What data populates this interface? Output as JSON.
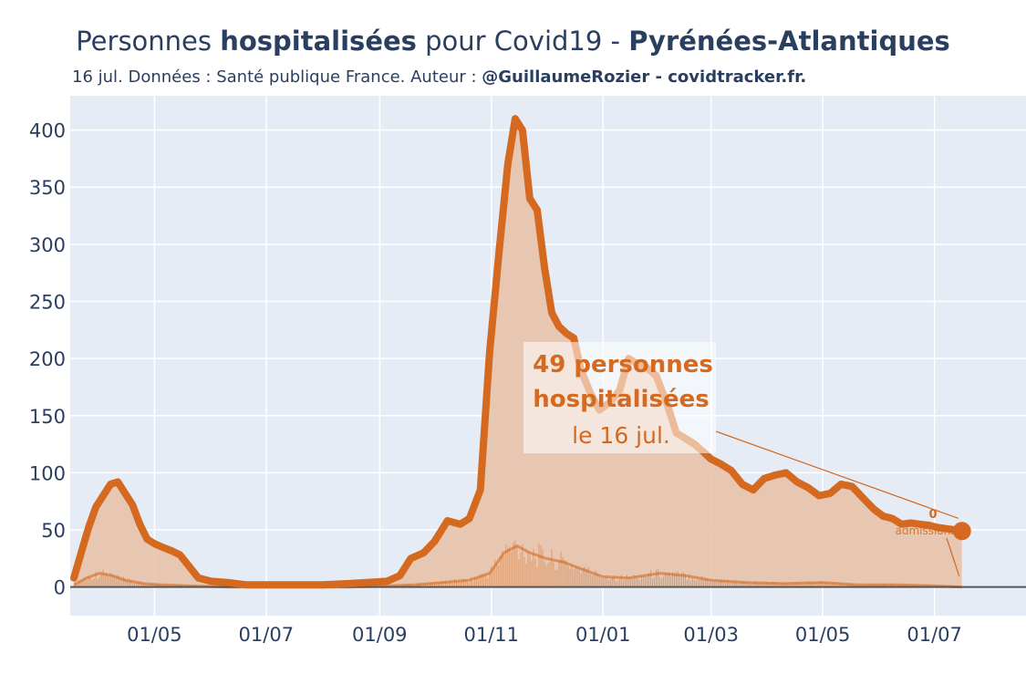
{
  "header": {
    "title_pre": "Personnes ",
    "title_bold": "hospitalisées",
    "title_mid": " pour Covid19 - ",
    "title_region": "Pyrénées-Atlantiques",
    "subtitle_pre": "16 jul. Données : Santé publique France. Auteur : ",
    "subtitle_bold": "@GuillaumeRozier - covidtracker.fr."
  },
  "annotation": {
    "line1": "49 personnes",
    "line2": "hospitalisées",
    "line3": "le 16 jul.",
    "admissions_value": "0",
    "admissions_label": "admissions"
  },
  "colors": {
    "hosp_line": "#d4691f",
    "hosp_fill": "#e7c3ab",
    "plot_bg": "#e5ecf6",
    "grid": "#ffffff",
    "text": "#2a3f5f"
  },
  "chart_data": {
    "type": "line",
    "ylim": [
      -25,
      430
    ],
    "yticks": [
      0,
      50,
      100,
      150,
      200,
      250,
      300,
      350,
      400
    ],
    "xticks": [
      "01/05",
      "01/07",
      "01/09",
      "01/11",
      "01/01",
      "01/03",
      "01/05",
      "01/07"
    ],
    "series": [
      {
        "name": "hospitalisations",
        "x": [
          "2020-03-18",
          "2020-03-22",
          "2020-03-26",
          "2020-03-30",
          "2020-04-03",
          "2020-04-07",
          "2020-04-11",
          "2020-04-15",
          "2020-04-19",
          "2020-04-23",
          "2020-04-27",
          "2020-05-01",
          "2020-05-05",
          "2020-05-10",
          "2020-05-15",
          "2020-05-20",
          "2020-05-25",
          "2020-06-01",
          "2020-06-10",
          "2020-06-20",
          "2020-07-01",
          "2020-07-15",
          "2020-08-01",
          "2020-08-15",
          "2020-08-25",
          "2020-09-05",
          "2020-09-12",
          "2020-09-18",
          "2020-09-25",
          "2020-10-01",
          "2020-10-08",
          "2020-10-15",
          "2020-10-20",
          "2020-10-26",
          "2020-10-31",
          "2020-11-05",
          "2020-11-10",
          "2020-11-14",
          "2020-11-18",
          "2020-11-22",
          "2020-11-26",
          "2020-11-30",
          "2020-12-04",
          "2020-12-08",
          "2020-12-12",
          "2020-12-16",
          "2020-12-20",
          "2020-12-25",
          "2020-12-30",
          "2021-01-05",
          "2021-01-10",
          "2021-01-15",
          "2021-01-20",
          "2021-01-25",
          "2021-01-30",
          "2021-02-05",
          "2021-02-10",
          "2021-02-15",
          "2021-02-20",
          "2021-02-25",
          "2021-03-01",
          "2021-03-06",
          "2021-03-12",
          "2021-03-18",
          "2021-03-24",
          "2021-03-30",
          "2021-04-05",
          "2021-04-11",
          "2021-04-17",
          "2021-04-23",
          "2021-04-29",
          "2021-05-05",
          "2021-05-11",
          "2021-05-17",
          "2021-05-23",
          "2021-05-29",
          "2021-06-03",
          "2021-06-08",
          "2021-06-13",
          "2021-06-18",
          "2021-06-23",
          "2021-06-28",
          "2021-07-03",
          "2021-07-08",
          "2021-07-12",
          "2021-07-16"
        ],
        "values": [
          8,
          30,
          52,
          70,
          80,
          90,
          92,
          82,
          72,
          55,
          42,
          38,
          35,
          32,
          28,
          18,
          8,
          5,
          4,
          2,
          2,
          2,
          2,
          3,
          4,
          5,
          10,
          25,
          30,
          40,
          58,
          55,
          60,
          85,
          205,
          290,
          370,
          410,
          400,
          340,
          330,
          280,
          240,
          228,
          222,
          218,
          190,
          170,
          155,
          162,
          172,
          200,
          195,
          192,
          185,
          160,
          135,
          130,
          125,
          118,
          112,
          108,
          102,
          90,
          85,
          95,
          98,
          100,
          92,
          87,
          80,
          82,
          90,
          88,
          78,
          68,
          62,
          60,
          55,
          56,
          55,
          54,
          52,
          51,
          50,
          49
        ]
      },
      {
        "name": "admissions",
        "x": [
          "2020-03-18",
          "2020-03-25",
          "2020-04-01",
          "2020-04-08",
          "2020-04-15",
          "2020-04-25",
          "2020-05-05",
          "2020-05-20",
          "2020-06-10",
          "2020-07-15",
          "2020-08-15",
          "2020-09-05",
          "2020-09-20",
          "2020-10-05",
          "2020-10-20",
          "2020-10-31",
          "2020-11-08",
          "2020-11-15",
          "2020-11-22",
          "2020-12-01",
          "2020-12-10",
          "2020-12-20",
          "2021-01-01",
          "2021-01-15",
          "2021-02-01",
          "2021-02-15",
          "2021-03-01",
          "2021-03-20",
          "2021-04-10",
          "2021-05-01",
          "2021-05-20",
          "2021-06-10",
          "2021-07-01",
          "2021-07-16"
        ],
        "values": [
          2,
          8,
          12,
          10,
          6,
          3,
          2,
          1,
          0,
          0,
          0,
          1,
          2,
          4,
          6,
          12,
          30,
          36,
          30,
          25,
          22,
          16,
          9,
          8,
          12,
          10,
          6,
          4,
          3,
          4,
          2,
          2,
          1,
          0
        ]
      }
    ]
  }
}
